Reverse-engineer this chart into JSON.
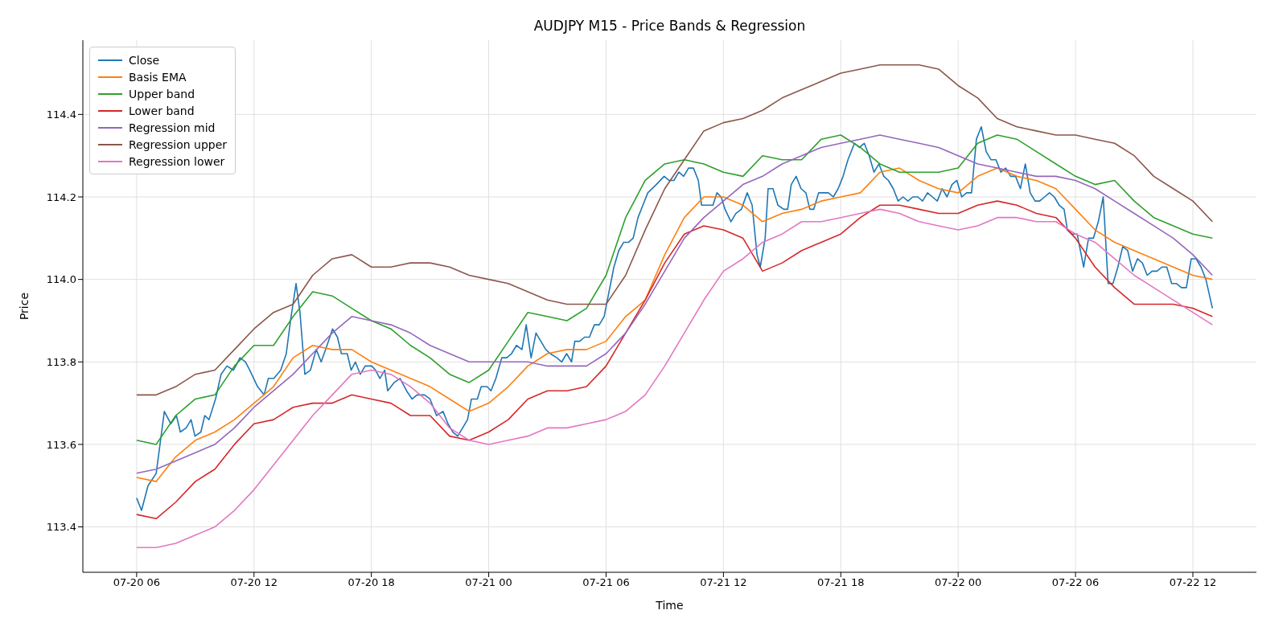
{
  "chart_data": {
    "type": "line",
    "title": "AUDJPY M15 - Price Bands & Regression",
    "xlabel": "Time",
    "ylabel": "Price",
    "x": [
      "--07-20T06:00",
      "--07-20T07:00",
      "--07-20T08:00",
      "--07-20T09:00",
      "--07-20T10:00",
      "--07-20T11:00",
      "--07-20T12:00",
      "--07-20T13:00",
      "--07-20T14:00",
      "--07-20T15:00",
      "--07-20T16:00",
      "--07-20T17:00",
      "--07-20T18:00",
      "--07-20T19:00",
      "--07-20T20:00",
      "--07-20T21:00",
      "--07-20T22:00",
      "--07-20T23:00",
      "--07-21T00:00",
      "--07-21T01:00",
      "--07-21T02:00",
      "--07-21T03:00",
      "--07-21T04:00",
      "--07-21T05:00",
      "--07-21T06:00",
      "--07-21T07:00",
      "--07-21T08:00",
      "--07-21T09:00",
      "--07-21T10:00",
      "--07-21T11:00",
      "--07-21T12:00",
      "--07-21T13:00",
      "--07-21T14:00",
      "--07-21T15:00",
      "--07-21T16:00",
      "--07-21T17:00",
      "--07-21T18:00",
      "--07-21T19:00",
      "--07-21T20:00",
      "--07-21T21:00",
      "--07-21T22:00",
      "--07-21T23:00",
      "--07-22T00:00",
      "--07-22T01:00",
      "--07-22T02:00",
      "--07-22T03:00",
      "--07-22T04:00",
      "--07-22T05:00",
      "--07-22T06:00",
      "--07-22T07:00",
      "--07-22T08:00",
      "--07-22T09:00",
      "--07-22T10:00",
      "--07-22T11:00",
      "--07-22T12:00",
      "--07-22T13:00"
    ],
    "xlim": [
      "--07-20T03:15",
      "--07-22T15:15"
    ],
    "xticks": [
      {
        "value": "--07-20T06:00",
        "label": "07-20 06"
      },
      {
        "value": "--07-20T12:00",
        "label": "07-20 12"
      },
      {
        "value": "--07-20T18:00",
        "label": "07-20 18"
      },
      {
        "value": "--07-21T00:00",
        "label": "07-21 00"
      },
      {
        "value": "--07-21T06:00",
        "label": "07-21 06"
      },
      {
        "value": "--07-21T12:00",
        "label": "07-21 12"
      },
      {
        "value": "--07-21T18:00",
        "label": "07-21 18"
      },
      {
        "value": "--07-22T00:00",
        "label": "07-22 00"
      },
      {
        "value": "--07-22T06:00",
        "label": "07-22 06"
      },
      {
        "value": "--07-22T12:00",
        "label": "07-22 12"
      }
    ],
    "ylim": [
      113.29,
      114.58
    ],
    "yticks": [
      113.4,
      113.6,
      113.8,
      {
        "value": 114,
        "label": "114.0"
      },
      114.2,
      114.4
    ],
    "grid": true,
    "legend": "top left",
    "line_style": "solid",
    "series": [
      {
        "name": "Close",
        "color": "#1f77b4",
        "x": [
          "--07-20T06:00",
          "--07-20T06:15",
          "--07-20T06:35",
          "--07-20T07:00",
          "--07-20T07:25",
          "--07-20T07:45",
          "--07-20T08:02",
          "--07-20T08:14",
          "--07-20T08:32",
          "--07-20T08:47",
          "--07-20T08:59",
          "--07-20T09:17",
          "--07-20T09:29",
          "--07-20T09:42",
          "--07-20T10:02",
          "--07-20T10:19",
          "--07-20T10:37",
          "--07-20T10:57",
          "--07-20T11:17",
          "--07-20T11:34",
          "--07-20T11:47",
          "--07-20T12:11",
          "--07-20T12:31",
          "--07-20T12:44",
          "--07-20T13:01",
          "--07-20T13:22",
          "--07-20T13:39",
          "--07-20T13:52",
          "--07-20T14:09",
          "--07-20T14:21",
          "--07-20T14:36",
          "--07-20T14:53",
          "--07-20T15:11",
          "--07-20T15:26",
          "--07-20T15:44",
          "--07-20T16:01",
          "--07-20T16:16",
          "--07-20T16:28",
          "--07-20T16:46",
          "--07-20T16:58",
          "--07-20T17:11",
          "--07-20T17:26",
          "--07-20T17:41",
          "--07-20T18:01",
          "--07-20T18:13",
          "--07-20T18:26",
          "--07-20T18:41",
          "--07-20T18:50",
          "--07-20T19:10",
          "--07-20T19:28",
          "--07-20T19:48",
          "--07-20T20:05",
          "--07-20T20:20",
          "--07-20T20:43",
          "--07-20T21:00",
          "--07-20T21:20",
          "--07-20T21:40",
          "--07-20T21:55",
          "--07-20T22:10",
          "--07-20T22:25",
          "--07-20T22:40",
          "--07-20T22:55",
          "--07-20T23:07",
          "--07-20T23:25",
          "--07-20T23:37",
          "--07-20T23:55",
          "--07-21T00:07",
          "--07-21T00:22",
          "--07-21T00:40",
          "--07-21T00:55",
          "--07-21T01:10",
          "--07-21T01:25",
          "--07-21T01:42",
          "--07-21T01:55",
          "--07-21T02:10",
          "--07-21T02:25",
          "--07-21T02:40",
          "--07-21T02:55",
          "--07-21T03:09",
          "--07-21T03:29",
          "--07-21T03:44",
          "--07-21T03:59",
          "--07-21T04:14",
          "--07-21T04:24",
          "--07-21T04:39",
          "--07-21T04:54",
          "--07-21T05:09",
          "--07-21T05:24",
          "--07-21T05:39",
          "--07-21T05:54",
          "--07-21T06:09",
          "--07-21T06:24",
          "--07-21T06:39",
          "--07-21T06:54",
          "--07-21T07:09",
          "--07-21T07:23",
          "--07-21T07:38",
          "--07-21T07:53",
          "--07-21T08:08",
          "--07-21T08:34",
          "--07-21T08:58",
          "--07-21T09:13",
          "--07-21T09:28",
          "--07-21T09:43",
          "--07-21T09:58",
          "--07-21T10:13",
          "--07-21T10:28",
          "--07-21T10:43",
          "--07-21T10:53",
          "--07-21T11:16",
          "--07-21T11:28",
          "--07-21T11:40",
          "--07-21T11:53",
          "--07-21T12:05",
          "--07-21T12:23",
          "--07-21T12:38",
          "--07-21T12:55",
          "--07-21T13:13",
          "--07-21T13:28",
          "--07-21T13:43",
          "--07-21T13:53",
          "--07-21T14:08",
          "--07-21T14:17",
          "--07-21T14:32",
          "--07-21T14:47",
          "--07-21T15:05",
          "--07-21T15:17",
          "--07-21T15:28",
          "--07-21T15:43",
          "--07-21T15:58",
          "--07-21T16:13",
          "--07-21T16:25",
          "--07-21T16:37",
          "--07-21T16:52",
          "--07-21T17:07",
          "--07-21T17:22",
          "--07-21T17:37",
          "--07-21T17:52",
          "--07-21T18:07",
          "--07-21T18:22",
          "--07-21T18:42",
          "--07-21T18:57",
          "--07-21T19:12",
          "--07-21T19:27",
          "--07-21T19:42",
          "--07-21T19:57",
          "--07-21T20:12",
          "--07-21T20:26",
          "--07-21T20:41",
          "--07-21T20:56",
          "--07-21T21:11",
          "--07-21T21:26",
          "--07-21T21:41",
          "--07-21T21:56",
          "--07-21T22:11",
          "--07-21T22:26",
          "--07-21T22:41",
          "--07-21T22:56",
          "--07-21T23:11",
          "--07-21T23:26",
          "--07-21T23:41",
          "--07-21T23:56",
          "--07-22T00:11",
          "--07-22T00:26",
          "--07-22T00:41",
          "--07-22T00:56",
          "--07-22T01:11",
          "--07-22T01:26",
          "--07-22T01:41",
          "--07-22T01:56",
          "--07-22T02:11",
          "--07-22T02:26",
          "--07-22T02:41",
          "--07-22T02:56",
          "--07-22T03:11",
          "--07-22T03:26",
          "--07-22T03:41",
          "--07-22T03:56",
          "--07-22T04:10",
          "--07-22T04:25",
          "--07-22T04:40",
          "--07-22T04:55",
          "--07-22T05:10",
          "--07-22T05:25",
          "--07-22T05:35",
          "--07-22T05:50",
          "--07-22T06:05",
          "--07-22T06:25",
          "--07-22T06:40",
          "--07-22T06:55",
          "--07-22T07:10",
          "--07-22T07:25",
          "--07-22T07:40",
          "--07-22T07:55",
          "--07-22T08:10",
          "--07-22T08:25",
          "--07-22T08:40",
          "--07-22T08:55",
          "--07-22T09:10",
          "--07-22T09:25",
          "--07-22T09:40",
          "--07-22T09:55",
          "--07-22T10:10",
          "--07-22T10:25",
          "--07-22T10:40",
          "--07-22T10:55",
          "--07-22T11:10",
          "--07-22T11:25",
          "--07-22T11:40",
          "--07-22T11:55",
          "--07-22T12:10",
          "--07-22T12:25",
          "--07-22T12:40",
          "--07-22T13:00"
        ],
        "values": [
          113.47,
          113.44,
          113.5,
          113.53,
          113.68,
          113.65,
          113.67,
          113.63,
          113.64,
          113.66,
          113.62,
          113.63,
          113.67,
          113.66,
          113.71,
          113.77,
          113.79,
          113.78,
          113.81,
          113.8,
          113.78,
          113.74,
          113.72,
          113.76,
          113.76,
          113.78,
          113.82,
          113.9,
          113.99,
          113.92,
          113.77,
          113.78,
          113.83,
          113.8,
          113.84,
          113.88,
          113.86,
          113.82,
          113.82,
          113.78,
          113.8,
          113.77,
          113.79,
          113.79,
          113.78,
          113.76,
          113.78,
          113.73,
          113.75,
          113.76,
          113.73,
          113.71,
          113.72,
          113.72,
          113.71,
          113.67,
          113.68,
          113.65,
          113.63,
          113.62,
          113.64,
          113.66,
          113.71,
          113.71,
          113.74,
          113.74,
          113.73,
          113.76,
          113.81,
          113.81,
          113.82,
          113.84,
          113.83,
          113.89,
          113.81,
          113.87,
          113.85,
          113.83,
          113.82,
          113.81,
          113.8,
          113.82,
          113.8,
          113.85,
          113.85,
          113.86,
          113.86,
          113.89,
          113.89,
          113.91,
          113.97,
          114.03,
          114.07,
          114.09,
          114.09,
          114.1,
          114.15,
          114.18,
          114.21,
          114.23,
          114.25,
          114.24,
          114.24,
          114.26,
          114.25,
          114.27,
          114.27,
          114.24,
          114.18,
          114.18,
          114.18,
          114.21,
          114.2,
          114.17,
          114.14,
          114.16,
          114.17,
          114.21,
          114.18,
          114.06,
          114.03,
          114.1,
          114.22,
          114.22,
          114.18,
          114.17,
          114.17,
          114.23,
          114.25,
          114.22,
          114.21,
          114.17,
          114.17,
          114.21,
          114.21,
          114.21,
          114.2,
          114.22,
          114.25,
          114.29,
          114.33,
          114.32,
          114.33,
          114.3,
          114.26,
          114.28,
          114.25,
          114.24,
          114.22,
          114.19,
          114.2,
          114.19,
          114.2,
          114.2,
          114.19,
          114.21,
          114.2,
          114.19,
          114.22,
          114.2,
          114.23,
          114.24,
          114.2,
          114.21,
          114.21,
          114.34,
          114.37,
          114.31,
          114.29,
          114.29,
          114.26,
          114.27,
          114.25,
          114.25,
          114.22,
          114.28,
          114.21,
          114.19,
          114.19,
          114.2,
          114.21,
          114.2,
          114.18,
          114.17,
          114.12,
          114.11,
          114.11,
          114.03,
          114.1,
          114.1,
          114.14,
          114.2,
          113.99,
          113.99,
          114.03,
          114.08,
          114.07,
          114.02,
          114.05,
          114.04,
          114.01,
          114.02,
          114.02,
          114.03,
          114.03,
          113.99,
          113.99,
          113.98,
          113.98,
          114.05,
          114.05,
          114.03,
          114,
          113.93
        ]
      },
      {
        "name": "Basis EMA",
        "color": "#ff7f0e",
        "values": [
          113.52,
          113.51,
          113.57,
          113.61,
          113.63,
          113.66,
          113.7,
          113.74,
          113.81,
          113.84,
          113.83,
          113.83,
          113.8,
          113.78,
          113.76,
          113.74,
          113.71,
          113.68,
          113.7,
          113.74,
          113.79,
          113.82,
          113.83,
          113.83,
          113.85,
          113.91,
          113.95,
          114.06,
          114.15,
          114.2,
          114.2,
          114.18,
          114.14,
          114.16,
          114.17,
          114.19,
          114.2,
          114.21,
          114.26,
          114.27,
          114.24,
          114.22,
          114.21,
          114.25,
          114.27,
          114.25,
          114.24,
          114.22,
          114.17,
          114.12,
          114.09,
          114.07,
          114.05,
          114.03,
          114.01,
          114
        ]
      },
      {
        "name": "Upper band",
        "color": "#2ca02c",
        "values": [
          113.61,
          113.6,
          113.67,
          113.71,
          113.72,
          113.79,
          113.84,
          113.84,
          113.91,
          113.97,
          113.96,
          113.93,
          113.9,
          113.88,
          113.84,
          113.81,
          113.77,
          113.75,
          113.78,
          113.85,
          113.92,
          113.91,
          113.9,
          113.93,
          114.01,
          114.15,
          114.24,
          114.28,
          114.29,
          114.28,
          114.26,
          114.25,
          114.3,
          114.29,
          114.29,
          114.34,
          114.35,
          114.32,
          114.28,
          114.26,
          114.26,
          114.26,
          114.27,
          114.33,
          114.35,
          114.34,
          114.31,
          114.28,
          114.25,
          114.23,
          114.24,
          114.19,
          114.15,
          114.13,
          114.11,
          114.1
        ]
      },
      {
        "name": "Lower band",
        "color": "#d62728",
        "values": [
          113.43,
          113.42,
          113.46,
          113.51,
          113.54,
          113.6,
          113.65,
          113.66,
          113.69,
          113.7,
          113.7,
          113.72,
          113.71,
          113.7,
          113.67,
          113.67,
          113.62,
          113.61,
          113.63,
          113.66,
          113.71,
          113.73,
          113.73,
          113.74,
          113.79,
          113.87,
          113.95,
          114.04,
          114.11,
          114.13,
          114.12,
          114.1,
          114.02,
          114.04,
          114.07,
          114.09,
          114.11,
          114.15,
          114.18,
          114.18,
          114.17,
          114.16,
          114.16,
          114.18,
          114.19,
          114.18,
          114.16,
          114.15,
          114.1,
          114.03,
          113.98,
          113.94,
          113.94,
          113.94,
          113.93,
          113.91
        ]
      },
      {
        "name": "Regression mid",
        "color": "#9467bd",
        "values": [
          113.53,
          113.54,
          113.56,
          113.58,
          113.6,
          113.64,
          113.69,
          113.73,
          113.77,
          113.82,
          113.87,
          113.91,
          113.9,
          113.89,
          113.87,
          113.84,
          113.82,
          113.8,
          113.8,
          113.8,
          113.8,
          113.79,
          113.79,
          113.79,
          113.82,
          113.87,
          113.94,
          114.02,
          114.1,
          114.15,
          114.19,
          114.23,
          114.25,
          114.28,
          114.3,
          114.32,
          114.33,
          114.34,
          114.35,
          114.34,
          114.33,
          114.32,
          114.3,
          114.28,
          114.27,
          114.26,
          114.25,
          114.25,
          114.24,
          114.22,
          114.19,
          114.16,
          114.13,
          114.1,
          114.06,
          114.01
        ]
      },
      {
        "name": "Regression upper",
        "color": "#8c564b",
        "values": [
          113.72,
          113.72,
          113.74,
          113.77,
          113.78,
          113.83,
          113.88,
          113.92,
          113.94,
          114.01,
          114.05,
          114.06,
          114.03,
          114.03,
          114.04,
          114.04,
          114.03,
          114.01,
          114,
          113.99,
          113.97,
          113.95,
          113.94,
          113.94,
          113.94,
          114.01,
          114.12,
          114.22,
          114.29,
          114.36,
          114.38,
          114.39,
          114.41,
          114.44,
          114.46,
          114.48,
          114.5,
          114.51,
          114.52,
          114.52,
          114.52,
          114.51,
          114.47,
          114.44,
          114.39,
          114.37,
          114.36,
          114.35,
          114.35,
          114.34,
          114.33,
          114.3,
          114.25,
          114.22,
          114.19,
          114.14
        ]
      },
      {
        "name": "Regression lower",
        "color": "#e377c2",
        "values": [
          113.35,
          113.35,
          113.36,
          113.38,
          113.4,
          113.44,
          113.49,
          113.55,
          113.61,
          113.67,
          113.72,
          113.77,
          113.78,
          113.77,
          113.74,
          113.7,
          113.64,
          113.61,
          113.6,
          113.61,
          113.62,
          113.64,
          113.64,
          113.65,
          113.66,
          113.68,
          113.72,
          113.79,
          113.87,
          113.95,
          114.02,
          114.05,
          114.09,
          114.11,
          114.14,
          114.14,
          114.15,
          114.16,
          114.17,
          114.16,
          114.14,
          114.13,
          114.12,
          114.13,
          114.15,
          114.15,
          114.14,
          114.14,
          114.11,
          114.09,
          114.05,
          114.01,
          113.98,
          113.95,
          113.92,
          113.89
        ]
      }
    ]
  }
}
